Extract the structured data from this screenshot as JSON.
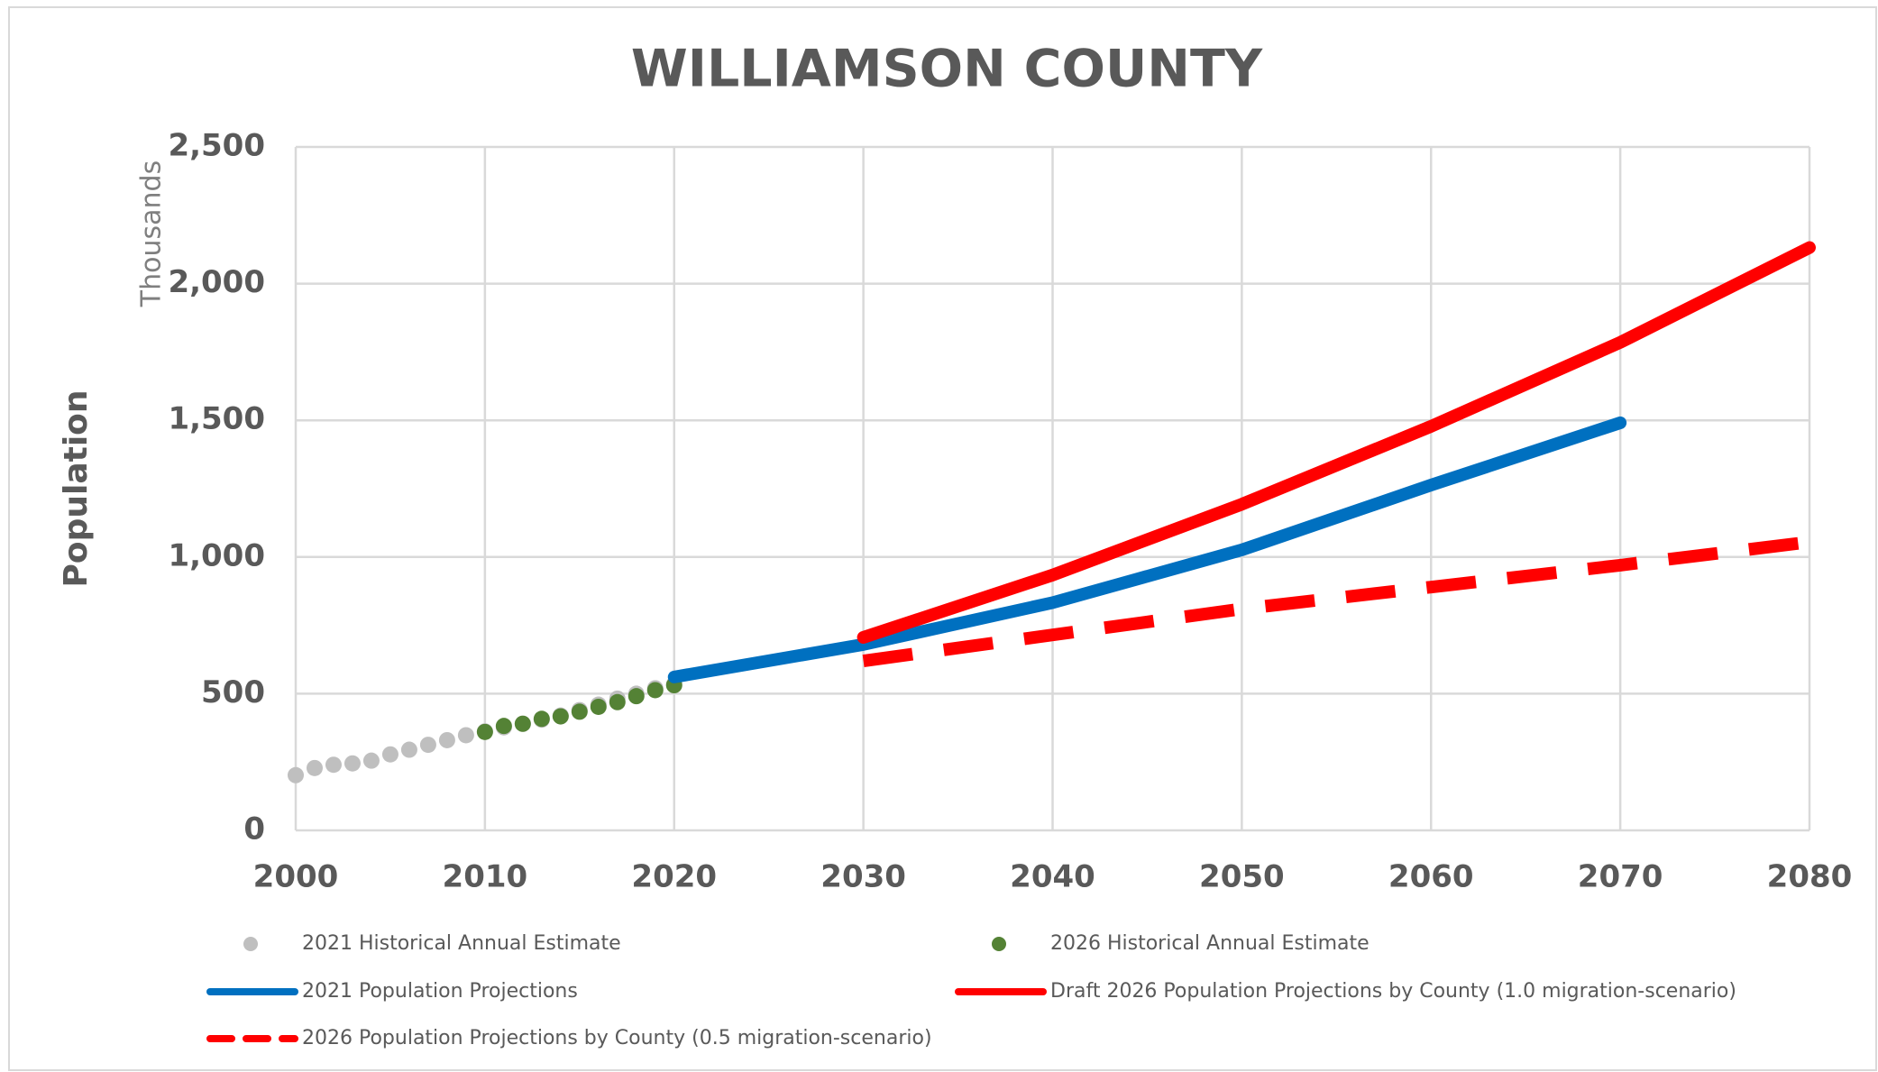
{
  "chart_data": {
    "type": "line",
    "title": "WILLIAMSON COUNTY",
    "y_label": "Population",
    "y_unit_label": "Thousands",
    "xlim": [
      2000,
      2080
    ],
    "xticks": [
      2000,
      2010,
      2020,
      2030,
      2040,
      2050,
      2060,
      2070,
      2080
    ],
    "ylim": [
      0,
      2500
    ],
    "yticks": [
      0,
      500,
      {
        "value": 1000,
        "label": "1,000"
      },
      {
        "value": 1500,
        "label": "1,500"
      },
      {
        "value": 2000,
        "label": "2,000"
      },
      {
        "value": 2500,
        "label": "2,500"
      }
    ],
    "grid": true,
    "legend": "bottom",
    "series": [
      {
        "name": "2021 Historical Annual Estimate",
        "color": "#bfbfbf",
        "mode": "markers",
        "x": [
          2000,
          2001,
          2002,
          2003,
          2004,
          2005,
          2006,
          2007,
          2008,
          2009,
          2010,
          2011,
          2012,
          2013,
          2014,
          2015,
          2016,
          2017,
          2018,
          2019,
          2020
        ],
        "values": [
          202,
          228,
          240,
          245,
          255,
          278,
          295,
          313,
          330,
          348,
          362,
          377,
          390,
          405,
          420,
          440,
          460,
          482,
          500,
          520,
          535
        ]
      },
      {
        "name": "2026 Historical Annual Estimate",
        "color": "#548235",
        "mode": "markers",
        "x": [
          2010,
          2011,
          2012,
          2013,
          2014,
          2015,
          2016,
          2017,
          2018,
          2019,
          2020
        ],
        "values": [
          360,
          382,
          390,
          408,
          417,
          434,
          452,
          469,
          491,
          513,
          531
        ]
      },
      {
        "name": "2021 Population Projections",
        "color": "#0070c0",
        "mode": "line",
        "dash": false,
        "x": [
          2020,
          2030,
          2040,
          2050,
          2060,
          2070
        ],
        "values": [
          561,
          680,
          833,
          1026,
          1263,
          1491
        ]
      },
      {
        "name": "Draft 2026 Population Projections by County (1.0 migration-scenario)",
        "color": "#ff0000",
        "mode": "line",
        "dash": false,
        "x": [
          2030,
          2040,
          2050,
          2060,
          2070,
          2080
        ],
        "values": [
          706,
          934,
          1193,
          1478,
          1785,
          2132
        ]
      },
      {
        "name": "2026 Population Projections by County (0.5 migration-scenario)",
        "color": "#ff0000",
        "mode": "line",
        "dash": true,
        "x": [
          2030,
          2040,
          2050,
          2060,
          2070,
          2080
        ],
        "values": [
          620,
          715,
          810,
          890,
          970,
          1055
        ]
      }
    ]
  }
}
